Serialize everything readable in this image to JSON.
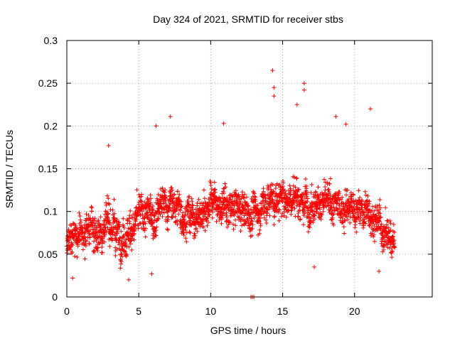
{
  "chart_data": {
    "type": "scatter",
    "title": "Day 324 of 2021, SRMTID for receiver stbs",
    "xlabel": "GPS time / hours",
    "ylabel": "SRMTID / TECUs",
    "xlim": [
      0,
      25.4
    ],
    "ylim": [
      0,
      0.3
    ],
    "x_ticks": [
      0,
      5,
      10,
      15,
      20
    ],
    "x_tick_labels": [
      "0",
      "5",
      "10",
      "15",
      "20"
    ],
    "y_ticks": [
      0,
      0.05,
      0.1,
      0.15,
      0.2,
      0.25,
      0.3
    ],
    "y_tick_labels": [
      "0",
      "0.05",
      "0.1",
      "0.15",
      "0.2",
      "0.25",
      "0.3"
    ],
    "grid": true,
    "marker": "+",
    "marker_color": "#ff0000",
    "point_spacing_hours": 0.01,
    "series": [
      {
        "name": "SRMTID",
        "trend_points": [
          {
            "x": 0.0,
            "y": 0.058
          },
          {
            "x": 1.0,
            "y": 0.075
          },
          {
            "x": 2.0,
            "y": 0.078
          },
          {
            "x": 3.0,
            "y": 0.088
          },
          {
            "x": 4.0,
            "y": 0.072
          },
          {
            "x": 5.0,
            "y": 0.092
          },
          {
            "x": 6.0,
            "y": 0.098
          },
          {
            "x": 7.0,
            "y": 0.11
          },
          {
            "x": 8.0,
            "y": 0.102
          },
          {
            "x": 9.0,
            "y": 0.092
          },
          {
            "x": 10.0,
            "y": 0.112
          },
          {
            "x": 11.0,
            "y": 0.102
          },
          {
            "x": 12.0,
            "y": 0.1
          },
          {
            "x": 13.0,
            "y": 0.096
          },
          {
            "x": 14.0,
            "y": 0.115
          },
          {
            "x": 15.0,
            "y": 0.112
          },
          {
            "x": 16.0,
            "y": 0.118
          },
          {
            "x": 17.0,
            "y": 0.115
          },
          {
            "x": 18.0,
            "y": 0.108
          },
          {
            "x": 19.0,
            "y": 0.105
          },
          {
            "x": 20.0,
            "y": 0.098
          },
          {
            "x": 21.0,
            "y": 0.1
          },
          {
            "x": 22.0,
            "y": 0.078
          },
          {
            "x": 22.8,
            "y": 0.07
          }
        ],
        "notable_points": [
          {
            "x": 14.3,
            "y": 0.265
          },
          {
            "x": 16.5,
            "y": 0.25
          },
          {
            "x": 16.5,
            "y": 0.242
          },
          {
            "x": 14.4,
            "y": 0.245
          },
          {
            "x": 14.4,
            "y": 0.235
          },
          {
            "x": 16.0,
            "y": 0.225
          },
          {
            "x": 21.1,
            "y": 0.22
          },
          {
            "x": 7.2,
            "y": 0.211
          },
          {
            "x": 18.7,
            "y": 0.211
          },
          {
            "x": 19.4,
            "y": 0.202
          },
          {
            "x": 10.9,
            "y": 0.203
          },
          {
            "x": 6.2,
            "y": 0.2
          },
          {
            "x": 2.9,
            "y": 0.177
          },
          {
            "x": 4.3,
            "y": 0.02
          },
          {
            "x": 0.4,
            "y": 0.022
          },
          {
            "x": 17.2,
            "y": 0.035
          },
          {
            "x": 21.7,
            "y": 0.03
          },
          {
            "x": 5.9,
            "y": 0.027
          },
          {
            "x": 12.8,
            "y": 0.0
          },
          {
            "x": 12.9,
            "y": 0.0
          },
          {
            "x": 13.0,
            "y": 0.0
          }
        ]
      }
    ]
  }
}
